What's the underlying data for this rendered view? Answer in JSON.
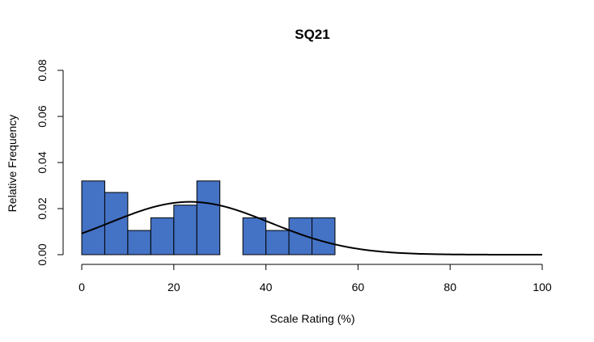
{
  "chart_data": {
    "type": "bar",
    "title": "SQ21",
    "xlabel": "Scale Rating (%)",
    "ylabel": "Relative Frequency",
    "xlim": [
      0,
      100
    ],
    "ylim": [
      0,
      0.08
    ],
    "x_ticks": [
      "0",
      "20",
      "40",
      "60",
      "80",
      "100"
    ],
    "y_ticks": [
      "0.00",
      "0.02",
      "0.04",
      "0.06",
      "0.08"
    ],
    "bar_color": "#4472c4",
    "bin_width": 5,
    "bins": [
      {
        "start": 0,
        "end": 5,
        "value": 0.032
      },
      {
        "start": 5,
        "end": 10,
        "value": 0.027
      },
      {
        "start": 10,
        "end": 15,
        "value": 0.0105
      },
      {
        "start": 15,
        "end": 20,
        "value": 0.016
      },
      {
        "start": 20,
        "end": 25,
        "value": 0.0215
      },
      {
        "start": 25,
        "end": 30,
        "value": 0.032
      },
      {
        "start": 30,
        "end": 35,
        "value": 0
      },
      {
        "start": 35,
        "end": 40,
        "value": 0.016
      },
      {
        "start": 40,
        "end": 45,
        "value": 0.0105
      },
      {
        "start": 45,
        "end": 50,
        "value": 0.016
      },
      {
        "start": 50,
        "end": 55,
        "value": 0.016
      }
    ],
    "normal_curve": {
      "mean": 23.5,
      "sd": 17.4,
      "x_range": [
        0,
        100
      ]
    },
    "grid": false,
    "legend": "none"
  }
}
